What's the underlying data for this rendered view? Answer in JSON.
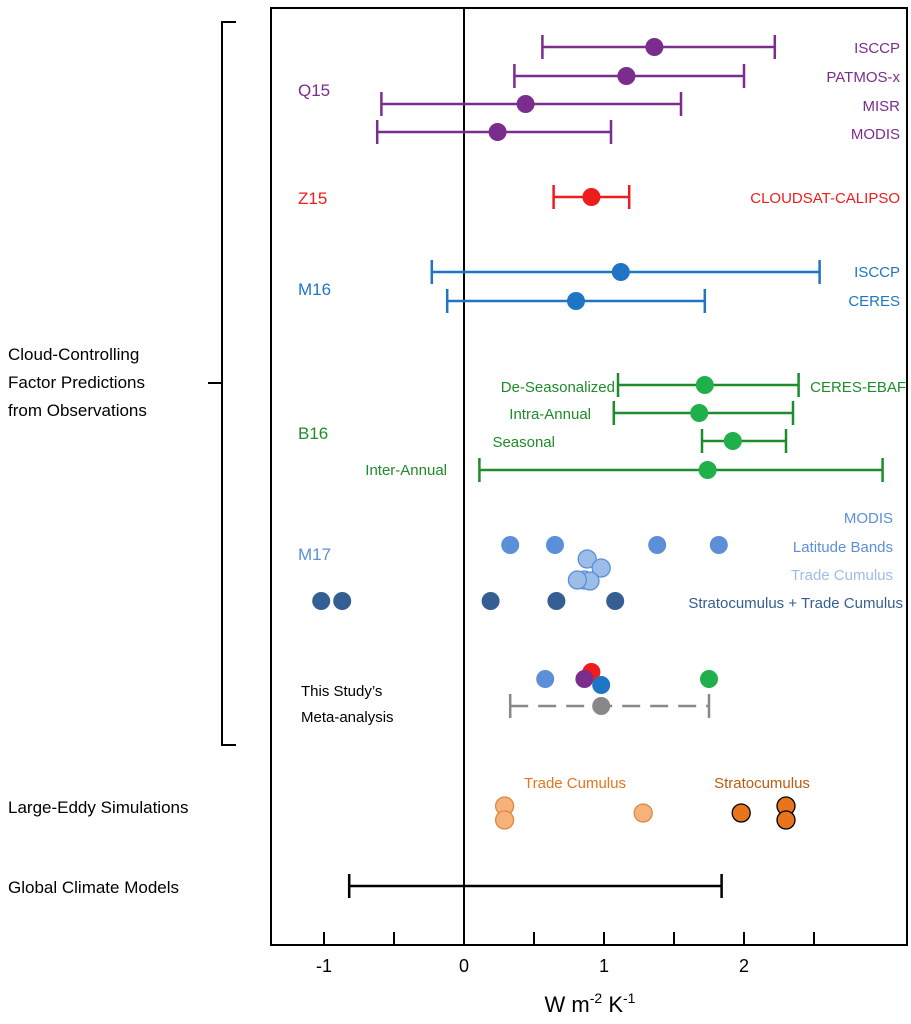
{
  "chart_data": {
    "type": "scatter",
    "xlabel": "W m",
    "xlabel_sup1": "-2",
    "xlabel_mid": " K",
    "xlabel_sup2": "-1",
    "xlim": [
      -1.4,
      3.2
    ],
    "x_ticks": [
      -1,
      0,
      1,
      2
    ],
    "x_minor_ticks": [
      -0.5,
      0.5,
      1.5,
      2.5
    ],
    "colors": {
      "Q15": "#7b2d8e",
      "Z15": "#ee1c1c",
      "M16": "#1f75c4",
      "B16": "#1e8c2a",
      "B16_marker": "#1fb04b",
      "M17_light": "#5b8fd8",
      "M17_pale": "#9dbde9",
      "M17_dark": "#355f93",
      "meta": "#888888",
      "les_light": "#f6b27a",
      "les_dark": "#e8741c",
      "gcm": "#000000"
    },
    "bracket_label": [
      "Cloud-Controlling",
      "Factor Predictions",
      "from Observations"
    ],
    "groups": [
      {
        "name": "Q15",
        "color_key": "Q15",
        "entries": [
          {
            "label": "ISCCP",
            "x": 1.36,
            "lo": 0.56,
            "hi": 2.22
          },
          {
            "label": "PATMOS-x",
            "x": 1.16,
            "lo": 0.36,
            "hi": 2.0
          },
          {
            "label": "MISR",
            "x": 0.44,
            "lo": -0.59,
            "hi": 1.55
          },
          {
            "label": "MODIS",
            "x": 0.24,
            "lo": -0.62,
            "hi": 1.05
          }
        ]
      },
      {
        "name": "Z15",
        "color_key": "Z15",
        "entries": [
          {
            "label": "CLOUDSAT-CALIPSO",
            "x": 0.91,
            "lo": 0.64,
            "hi": 1.18
          }
        ]
      },
      {
        "name": "M16",
        "color_key": "M16",
        "entries": [
          {
            "label": "ISCCP",
            "x": 1.12,
            "lo": -0.23,
            "hi": 2.54
          },
          {
            "label": "CERES",
            "x": 0.8,
            "lo": -0.12,
            "hi": 1.72
          }
        ]
      },
      {
        "name": "B16",
        "color_key": "B16",
        "dataset_label": "CERES-EBAF",
        "entries": [
          {
            "label": "De-Seasonalized",
            "x": 1.72,
            "lo": 1.1,
            "hi": 2.39
          },
          {
            "label": "Intra-Annual",
            "x": 1.68,
            "lo": 1.07,
            "hi": 2.35
          },
          {
            "label": "Seasonal",
            "x": 1.92,
            "lo": 1.7,
            "hi": 2.3
          },
          {
            "label": "Inter-Annual",
            "x": 1.74,
            "lo": 0.11,
            "hi": 2.99
          }
        ]
      }
    ],
    "m17": {
      "name": "M17",
      "labels": {
        "modis": "MODIS",
        "latitude": "Latitude Bands",
        "trade": "Trade Cumulus",
        "strato": "Stratocumulus + Trade Cumulus"
      },
      "latitude_bands": [
        0.33,
        0.65,
        1.38,
        1.82
      ],
      "trade_cumulus": [
        0.88,
        0.98,
        0.86,
        0.9,
        0.81
      ],
      "strato_trade": [
        -1.02,
        -0.87,
        0.19,
        0.66,
        1.08
      ]
    },
    "meta_analysis": {
      "label": [
        "This Study’s",
        "Meta-analysis"
      ],
      "markers": [
        {
          "x": 0.58,
          "color_key": "M17_light"
        },
        {
          "x": 0.91,
          "color_key": "Z15"
        },
        {
          "x": 0.86,
          "color_key": "Q15"
        },
        {
          "x": 0.98,
          "color_key": "M16"
        },
        {
          "x": 1.75,
          "color_key": "B16_marker"
        }
      ],
      "mean": 0.98,
      "lo": 0.33,
      "hi": 1.75
    },
    "les": {
      "label": "Large-Eddy Simulations",
      "trade_label": "Trade Cumulus",
      "strato_label": "Stratocumulus",
      "trade_cumulus": [
        0.29,
        0.29,
        1.28
      ],
      "stratocumulus": [
        1.98,
        2.3,
        2.3
      ]
    },
    "gcm": {
      "label": "Global Climate Models",
      "lo": -0.82,
      "hi": 1.84
    }
  }
}
